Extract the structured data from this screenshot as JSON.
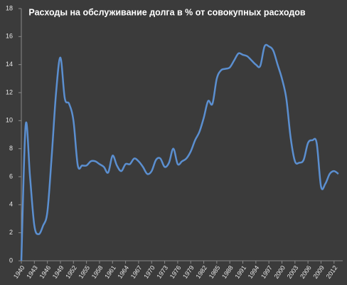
{
  "chart_data": {
    "type": "line",
    "title": "Расходы на обслуживание долга в % от совокупных расходов",
    "x": [
      1940,
      1941,
      1942,
      1943,
      1944,
      1945,
      1946,
      1947,
      1948,
      1949,
      1950,
      1951,
      1952,
      1953,
      1954,
      1955,
      1956,
      1957,
      1958,
      1959,
      1960,
      1961,
      1962,
      1963,
      1964,
      1965,
      1966,
      1967,
      1968,
      1969,
      1970,
      1971,
      1972,
      1973,
      1974,
      1975,
      1976,
      1977,
      1978,
      1979,
      1980,
      1981,
      1982,
      1983,
      1984,
      1985,
      1986,
      1987,
      1988,
      1989,
      1990,
      1991,
      1992,
      1993,
      1994,
      1995,
      1996,
      1997,
      1998,
      1999,
      2000,
      2001,
      2002,
      2003,
      2004,
      2005,
      2006,
      2007,
      2008,
      2009,
      2010,
      2011,
      2012,
      2013
    ],
    "series": [
      {
        "color": "#5b8fd0",
        "values": [
          0,
          9.7,
          6,
          2.5,
          1.9,
          2.5,
          3.5,
          7.5,
          12,
          14.5,
          11.6,
          11.2,
          10,
          6.8,
          6.8,
          6.8,
          7.1,
          7.1,
          6.9,
          6.7,
          6.3,
          7.5,
          6.8,
          6.4,
          6.9,
          6.9,
          7.3,
          7.1,
          6.7,
          6.2,
          6.4,
          7.2,
          7.3,
          6.7,
          7.0,
          8.0,
          6.9,
          7.1,
          7.3,
          7.8,
          8.6,
          9.2,
          10.2,
          11.4,
          11.2,
          13.0,
          13.6,
          13.7,
          13.8,
          14.3,
          14.8,
          14.7,
          14.6,
          14.3,
          14.0,
          13.9,
          15.3,
          15.3,
          15.0,
          14.0,
          13.0,
          11.6,
          8.8,
          7.1,
          7.0,
          7.2,
          8.4,
          8.6,
          8.4,
          5.3,
          5.5,
          6.2,
          6.4,
          6.2
        ]
      }
    ],
    "xlim": [
      1940,
      2014
    ],
    "xticks": [
      1940,
      1943,
      1946,
      1949,
      1952,
      1955,
      1958,
      1961,
      1964,
      1967,
      1970,
      1973,
      1976,
      1979,
      1982,
      1985,
      1988,
      1991,
      1994,
      1997,
      2000,
      2003,
      2006,
      2009,
      2012
    ],
    "ylim": [
      0,
      18
    ],
    "yticks": [
      0,
      2,
      4,
      6,
      8,
      10,
      12,
      14,
      16,
      18
    ],
    "grid": false
  }
}
